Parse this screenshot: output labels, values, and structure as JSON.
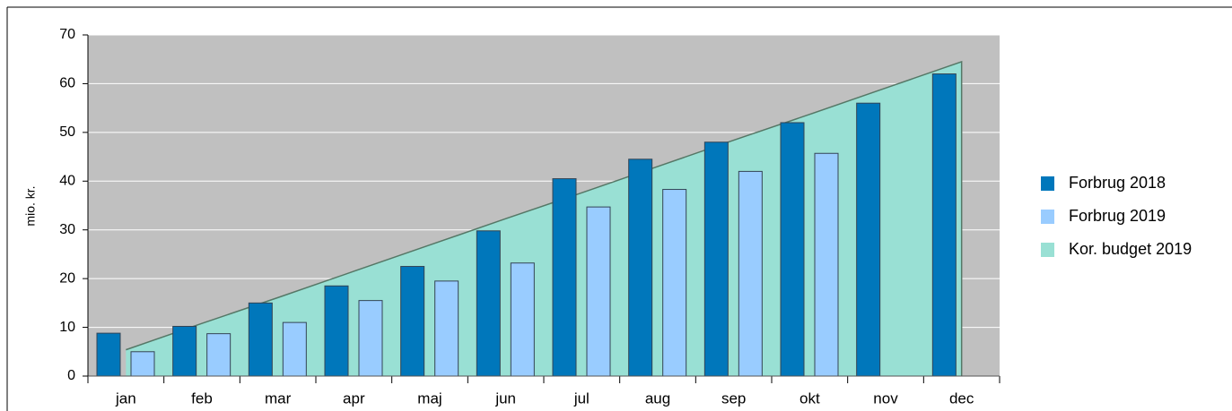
{
  "chart_data": {
    "type": "bar",
    "y_label": "mio. kr.",
    "categories": [
      "jan",
      "feb",
      "mar",
      "apr",
      "maj",
      "jun",
      "jul",
      "aug",
      "sep",
      "okt",
      "nov",
      "dec"
    ],
    "series": [
      {
        "name": "Forbrug 2018",
        "color": "#0077bb",
        "type": "bar",
        "values": [
          8.8,
          10.2,
          15,
          18.5,
          22.5,
          29.8,
          40.5,
          44.5,
          48,
          52,
          56,
          62
        ]
      },
      {
        "name": "Forbrug 2019",
        "color": "#99ccff",
        "type": "bar",
        "values": [
          5,
          8.7,
          11,
          15.5,
          19.5,
          23.2,
          34.7,
          38.3,
          42,
          45.7,
          null,
          null
        ]
      },
      {
        "name": "Kor. budget 2019",
        "color": "#99e0d4",
        "type": "area",
        "values": [
          5.4,
          10.8,
          16.1,
          21.5,
          26.9,
          32.3,
          37.6,
          43.0,
          48.4,
          53.7,
          59.1,
          64.5
        ]
      }
    ],
    "ylim": [
      0,
      70
    ],
    "yticks": [
      0,
      10,
      20,
      30,
      40,
      50,
      60,
      70
    ],
    "grid": true,
    "legend": "right"
  }
}
